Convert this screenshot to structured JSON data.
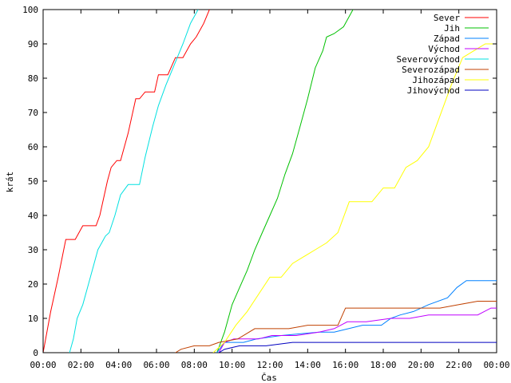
{
  "chart_data": {
    "type": "line",
    "title": "",
    "xlabel": "Čas",
    "ylabel": "krát",
    "xlim": [
      0,
      24
    ],
    "ylim": [
      0,
      100
    ],
    "x_ticks": [
      {
        "value": 0,
        "label": "00:00"
      },
      {
        "value": 2,
        "label": "02:00"
      },
      {
        "value": 4,
        "label": "04:00"
      },
      {
        "value": 6,
        "label": "06:00"
      },
      {
        "value": 8,
        "label": "08:00"
      },
      {
        "value": 10,
        "label": "10:00"
      },
      {
        "value": 12,
        "label": "12:00"
      },
      {
        "value": 14,
        "label": "14:00"
      },
      {
        "value": 16,
        "label": "16:00"
      },
      {
        "value": 18,
        "label": "18:00"
      },
      {
        "value": 20,
        "label": "20:00"
      },
      {
        "value": 22,
        "label": "22:00"
      },
      {
        "value": 24,
        "label": "00:00"
      }
    ],
    "y_ticks": [
      {
        "value": 0,
        "label": "0"
      },
      {
        "value": 10,
        "label": "10"
      },
      {
        "value": 20,
        "label": "20"
      },
      {
        "value": 30,
        "label": "30"
      },
      {
        "value": 40,
        "label": "40"
      },
      {
        "value": 50,
        "label": "50"
      },
      {
        "value": 60,
        "label": "60"
      },
      {
        "value": 70,
        "label": "70"
      },
      {
        "value": 80,
        "label": "80"
      },
      {
        "value": 90,
        "label": "90"
      },
      {
        "value": 100,
        "label": "100"
      }
    ],
    "grid": false,
    "legend_position": "top-right",
    "series": [
      {
        "name": "Sever",
        "color": "#ff0000",
        "x": [
          0,
          0.4,
          0.8,
          1.2,
          1.7,
          2.1,
          2.8,
          3.0,
          3.4,
          3.6,
          3.9,
          4.1,
          4.5,
          4.9,
          5.1,
          5.4,
          5.9,
          6.1,
          6.6,
          7.0,
          7.4,
          7.8,
          8.1,
          8.5,
          8.8
        ],
        "y": [
          0,
          12,
          22,
          33,
          33,
          37,
          37,
          40,
          50,
          54,
          56,
          56,
          64,
          74,
          74,
          76,
          76,
          81,
          81,
          86,
          86,
          90,
          92,
          96,
          100
        ]
      },
      {
        "name": "Jih",
        "color": "#00c000",
        "x": [
          9.2,
          9.6,
          10.0,
          10.4,
          10.8,
          11.2,
          11.6,
          12.0,
          12.4,
          12.8,
          13.2,
          13.6,
          14.0,
          14.4,
          14.8,
          15.0,
          15.4,
          15.9,
          16.4
        ],
        "y": [
          0,
          6,
          14,
          19,
          24,
          30,
          35,
          40,
          45,
          52,
          58,
          66,
          74,
          83,
          88,
          92,
          93,
          95,
          100
        ]
      },
      {
        "name": "Západ",
        "color": "#0080ff",
        "x": [
          9.2,
          9.6,
          10.6,
          11.3,
          12.6,
          14.6,
          15.4,
          16.9,
          17.9,
          18.4,
          18.9,
          19.6,
          20.4,
          21.4,
          21.9,
          22.4,
          23.0,
          24
        ],
        "y": [
          0,
          3,
          3,
          4,
          5,
          6,
          6,
          8,
          8,
          10,
          11,
          12,
          14,
          16,
          19,
          21,
          21,
          21
        ]
      },
      {
        "name": "Východ",
        "color": "#c000ff",
        "x": [
          9.3,
          9.6,
          10.1,
          11.4,
          12.1,
          13.4,
          14.6,
          15.4,
          16.1,
          17.1,
          18.4,
          19.4,
          20.4,
          21.4,
          22.4,
          23.0,
          23.7,
          24
        ],
        "y": [
          0,
          3,
          4,
          4,
          5,
          5,
          6,
          7,
          9,
          9,
          10,
          10,
          11,
          11,
          11,
          11,
          13,
          13
        ]
      },
      {
        "name": "Severovýchod",
        "color": "#00e0e0",
        "x": [
          1.4,
          1.6,
          1.8,
          2.1,
          2.5,
          2.9,
          3.3,
          3.5,
          3.8,
          4.1,
          4.5,
          5.1,
          5.4,
          5.8,
          6.1,
          6.5,
          6.8,
          7.1,
          7.4,
          7.8,
          8.2
        ],
        "y": [
          0,
          4,
          10,
          14,
          22,
          30,
          34,
          35,
          40,
          46,
          49,
          49,
          57,
          66,
          72,
          78,
          82,
          86,
          90,
          96,
          100
        ]
      },
      {
        "name": "Severozápad",
        "color": "#c04000",
        "x": [
          7.0,
          7.3,
          8.0,
          8.8,
          9.3,
          10.3,
          11.2,
          12.0,
          13.0,
          14.0,
          15.0,
          15.6,
          16.0,
          16.4,
          17.0,
          18.0,
          19.0,
          20.0,
          21.0,
          22.0,
          23.0,
          24
        ],
        "y": [
          0,
          1,
          2,
          2,
          3,
          4,
          7,
          7,
          7,
          8,
          8,
          8,
          13,
          13,
          13,
          13,
          13,
          13,
          13,
          14,
          15,
          15
        ]
      },
      {
        "name": "Jihozápad",
        "color": "#ffff00",
        "x": [
          9.0,
          9.6,
          10.2,
          10.8,
          11.4,
          12.0,
          12.6,
          13.2,
          13.8,
          14.4,
          15.0,
          15.6,
          16.2,
          16.8,
          17.4,
          18.0,
          18.6,
          19.2,
          19.8,
          20.4,
          21.0,
          21.6,
          22.2,
          22.8,
          23.4,
          24
        ],
        "y": [
          0,
          3,
          8,
          12,
          17,
          22,
          22,
          26,
          28,
          30,
          32,
          35,
          44,
          44,
          44,
          48,
          48,
          54,
          56,
          60,
          69,
          78,
          86,
          88,
          90,
          90
        ]
      },
      {
        "name": "Jihovýchod",
        "color": "#0000c0",
        "x": [
          9.3,
          9.6,
          10.4,
          11.8,
          13.2,
          14.6,
          16.0,
          17.4,
          18.8,
          20.2,
          21.6,
          23.0,
          24
        ],
        "y": [
          0,
          1,
          2,
          2,
          3,
          3,
          3,
          3,
          3,
          3,
          3,
          3,
          3
        ]
      }
    ]
  }
}
